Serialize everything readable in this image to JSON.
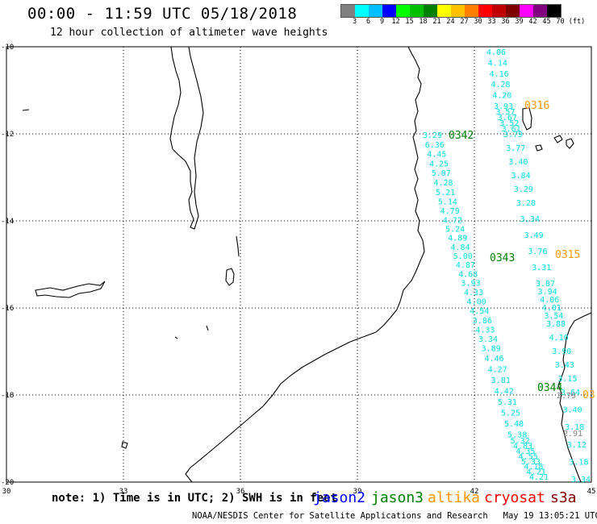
{
  "header": {
    "title": "00:00 - 11:59 UTC 05/18/2018",
    "subtitle": "12 hour collection of altimeter wave heights"
  },
  "legend": {
    "colors": [
      "#808080",
      "#00ffff",
      "#00bfff",
      "#0000ff",
      "#00ff00",
      "#00c000",
      "#008000",
      "#ffff00",
      "#ffc000",
      "#ff8000",
      "#ff0000",
      "#c00000",
      "#800000",
      "#ff00ff",
      "#800080",
      "#000000"
    ],
    "labels": [
      "3",
      "6",
      "9",
      "12",
      "15",
      "18",
      "21",
      "24",
      "27",
      "30",
      "33",
      "36",
      "39",
      "42",
      "45",
      "70",
      "(ft)"
    ]
  },
  "axes": {
    "lat_labels": [
      "-10",
      "-12",
      "-14",
      "-16",
      "-18",
      "-20"
    ],
    "lon_labels": [
      "30",
      "33",
      "36",
      "39",
      "42",
      "45"
    ]
  },
  "tracks": {
    "track_a": {
      "color": "#00e0e0",
      "values": [
        "3.29",
        "6.36",
        "4.45",
        "4.25",
        "5.07",
        "4.28",
        "5.21",
        "5.14",
        "4.79",
        "4.72",
        "5.24",
        "4.89",
        "4.84",
        "5.00",
        "4.87",
        "4.68",
        "3.93",
        "4.33",
        "4.00",
        "4.54",
        "3.86",
        "4.33",
        "3.34",
        "3.89",
        "4.46",
        "4.27",
        "3.81",
        "4.42",
        "5.31",
        "5.25",
        "5.48",
        "5.38",
        "5.32",
        "4.83",
        "4.35",
        "4.55",
        "5.33",
        "4.18",
        "4.21",
        "4.21"
      ]
    },
    "track_b": {
      "color": "#00e0e0",
      "values": [
        "4.06",
        "4.14",
        "4.16",
        "4.28",
        "4.20",
        "3.93",
        "3.57",
        "3.67",
        "3.52",
        "3.61",
        "3.79",
        "3.77",
        "3.40",
        "3.84",
        "3.29",
        "3.28",
        "3.34",
        "3.49",
        "3.76",
        "3.31",
        "3.87",
        "3.94",
        "4.06",
        "4.01",
        "3.54",
        "3.88",
        "4.10",
        "3.90",
        "3.43",
        "3.15",
        "3.64",
        "3.40",
        "3.18",
        "3.12",
        "3.18",
        "3.34"
      ]
    },
    "track_c": {
      "color": "#808080",
      "values": [
        "2.79",
        "2.91"
      ]
    }
  },
  "time_labels": [
    {
      "text": "0342",
      "color": "#008000"
    },
    {
      "text": "0343",
      "color": "#008000"
    },
    {
      "text": "0344",
      "color": "#008000"
    },
    {
      "text": "0316",
      "color": "#ff9900"
    },
    {
      "text": "0315",
      "color": "#ff9900"
    },
    {
      "text": "03",
      "color": "#ff9900"
    }
  ],
  "footer": {
    "note": "note: 1) Time is in UTC; 2) SWH is in feet",
    "satellites": [
      {
        "name": "jason2",
        "color": "#0000ff"
      },
      {
        "name": "jason3",
        "color": "#008000"
      },
      {
        "name": "altika",
        "color": "#ff9900"
      },
      {
        "name": "cryosat",
        "color": "#ff0000"
      },
      {
        "name": "s3a",
        "color": "#800000"
      }
    ],
    "credit": "NOAA/NESDIS Center for Satellite Applications and Research",
    "timestamp": "May 19 13:05:21 UTC 2018"
  }
}
